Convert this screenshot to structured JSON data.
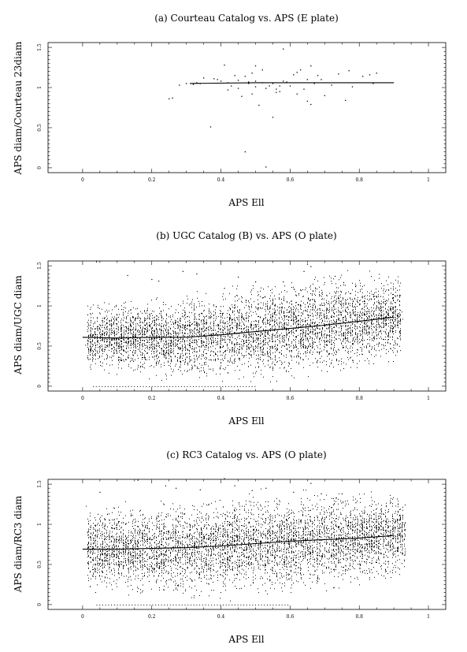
{
  "figure": {
    "background": "#ffffff",
    "ink": "#000000"
  },
  "chart_data": [
    {
      "type": "scatter",
      "title": "(a) Courteau Catalog vs. APS (E plate)",
      "xlabel": "APS Ell",
      "ylabel": "APS diam/Courteau 23diam",
      "xlim": [
        -0.1,
        1.05
      ],
      "ylim": [
        -0.06,
        1.56
      ],
      "x_ticks": [
        "0",
        "0.2",
        "0.4",
        "0.6",
        "0.8",
        "1"
      ],
      "y_ticks": [
        "0",
        "0.5",
        "1",
        "1.5"
      ],
      "grid": false,
      "series": [
        {
          "kind": "points",
          "points": [
            [
              0.25,
              0.86
            ],
            [
              0.26,
              0.87
            ],
            [
              0.28,
              1.03
            ],
            [
              0.3,
              1.05
            ],
            [
              0.32,
              1.04
            ],
            [
              0.33,
              1.06
            ],
            [
              0.34,
              1.05
            ],
            [
              0.35,
              1.12
            ],
            [
              0.37,
              0.51
            ],
            [
              0.38,
              1.11
            ],
            [
              0.39,
              1.1
            ],
            [
              0.4,
              1.08
            ],
            [
              0.41,
              1.28
            ],
            [
              0.42,
              1.06
            ],
            [
              0.42,
              0.97
            ],
            [
              0.43,
              1.02
            ],
            [
              0.44,
              1.15
            ],
            [
              0.45,
              1.09
            ],
            [
              0.45,
              0.99
            ],
            [
              0.46,
              0.89
            ],
            [
              0.47,
              0.2
            ],
            [
              0.47,
              1.14
            ],
            [
              0.48,
              1.07
            ],
            [
              0.48,
              1.05
            ],
            [
              0.49,
              0.92
            ],
            [
              0.49,
              1.18
            ],
            [
              0.5,
              1.27
            ],
            [
              0.5,
              1.01
            ],
            [
              0.5,
              1.08
            ],
            [
              0.51,
              0.78
            ],
            [
              0.52,
              1.22
            ],
            [
              0.52,
              1.06
            ],
            [
              0.53,
              0.99
            ],
            [
              0.53,
              0.01
            ],
            [
              0.54,
              1.02
            ],
            [
              0.55,
              0.63
            ],
            [
              0.55,
              1.05
            ],
            [
              0.56,
              0.94
            ],
            [
              0.56,
              0.98
            ],
            [
              0.57,
              1.02
            ],
            [
              0.57,
              0.95
            ],
            [
              0.58,
              1.48
            ],
            [
              0.58,
              1.08
            ],
            [
              0.59,
              1.07
            ],
            [
              0.6,
              1.02
            ],
            [
              0.61,
              1.16
            ],
            [
              0.62,
              0.92
            ],
            [
              0.62,
              1.19
            ],
            [
              0.63,
              1.22
            ],
            [
              0.64,
              0.98
            ],
            [
              0.65,
              0.83
            ],
            [
              0.65,
              1.1
            ],
            [
              0.66,
              0.79
            ],
            [
              0.66,
              1.27
            ],
            [
              0.67,
              1.05
            ],
            [
              0.68,
              1.15
            ],
            [
              0.69,
              1.1
            ],
            [
              0.7,
              0.9
            ],
            [
              0.72,
              1.03
            ],
            [
              0.74,
              1.17
            ],
            [
              0.76,
              0.84
            ],
            [
              0.77,
              1.21
            ],
            [
              0.78,
              1.01
            ],
            [
              0.81,
              1.14
            ],
            [
              0.83,
              1.16
            ],
            [
              0.84,
              1.05
            ],
            [
              0.85,
              1.18
            ]
          ]
        },
        {
          "kind": "line",
          "points": [
            [
              0.31,
              1.05
            ],
            [
              0.5,
              1.06
            ],
            [
              0.7,
              1.06
            ],
            [
              0.9,
              1.06
            ]
          ]
        }
      ]
    },
    {
      "type": "scatter",
      "title": "(b) UGC Catalog (B) vs. APS (O plate)",
      "xlabel": "APS Ell",
      "ylabel": "APS diam/UGC diam",
      "xlim": [
        -0.1,
        1.05
      ],
      "ylim": [
        -0.06,
        1.56
      ],
      "x_ticks": [
        "0",
        "0.2",
        "0.4",
        "0.6",
        "0.8",
        "1"
      ],
      "y_ticks": [
        "0",
        "0.5",
        "1",
        "1.5"
      ],
      "grid": false,
      "series": [
        {
          "kind": "dense_columns",
          "x_range": [
            0.01,
            0.92
          ],
          "n_points": 5200,
          "center": [
            [
              0.0,
              0.61
            ],
            [
              0.3,
              0.61
            ],
            [
              0.5,
              0.67
            ],
            [
              0.7,
              0.76
            ],
            [
              0.9,
              0.86
            ]
          ],
          "spread": [
            [
              0.0,
              0.17
            ],
            [
              0.3,
              0.2
            ],
            [
              0.5,
              0.23
            ],
            [
              0.7,
              0.24
            ],
            [
              0.9,
              0.2
            ]
          ],
          "zero_row": {
            "y": 0.0,
            "x_range": [
              0.03,
              0.5
            ]
          },
          "outliers": [
            [
              0.04,
              1.55
            ],
            [
              0.13,
              1.38
            ],
            [
              0.2,
              1.33
            ],
            [
              0.22,
              1.31
            ],
            [
              0.29,
              1.43
            ],
            [
              0.33,
              1.4
            ],
            [
              0.41,
              1.22
            ],
            [
              0.45,
              1.36
            ],
            [
              0.5,
              1.3
            ],
            [
              0.58,
              1.3
            ],
            [
              0.64,
              1.43
            ],
            [
              0.65,
              1.52
            ],
            [
              0.66,
              1.49
            ],
            [
              0.63,
              1.2
            ],
            [
              0.73,
              1.37
            ],
            [
              0.79,
              1.25
            ],
            [
              0.85,
              1.12
            ],
            [
              0.52,
              1.1
            ]
          ]
        },
        {
          "kind": "line",
          "points": [
            [
              0.0,
              0.61
            ],
            [
              0.1,
              0.6
            ],
            [
              0.2,
              0.61
            ],
            [
              0.3,
              0.61
            ],
            [
              0.4,
              0.64
            ],
            [
              0.5,
              0.68
            ],
            [
              0.6,
              0.72
            ],
            [
              0.7,
              0.76
            ],
            [
              0.8,
              0.81
            ],
            [
              0.9,
              0.86
            ]
          ]
        }
      ]
    },
    {
      "type": "scatter",
      "title": "(c) RC3 Catalog vs. APS (O plate)",
      "xlabel": "APS Ell",
      "ylabel": "APS diam/RC3 diam",
      "xlim": [
        -0.1,
        1.05
      ],
      "ylim": [
        -0.06,
        1.56
      ],
      "x_ticks": [
        "0",
        "0.2",
        "0.4",
        "0.6",
        "0.8",
        "1"
      ],
      "y_ticks": [
        "0",
        "0.5",
        "1",
        "1.5"
      ],
      "grid": false,
      "series": [
        {
          "kind": "dense_columns",
          "x_range": [
            0.01,
            0.93
          ],
          "n_points": 5200,
          "center": [
            [
              0.0,
              0.69
            ],
            [
              0.3,
              0.7
            ],
            [
              0.5,
              0.75
            ],
            [
              0.7,
              0.8
            ],
            [
              0.9,
              0.86
            ]
          ],
          "spread": [
            [
              0.0,
              0.2
            ],
            [
              0.3,
              0.23
            ],
            [
              0.5,
              0.25
            ],
            [
              0.7,
              0.24
            ],
            [
              0.9,
              0.2
            ]
          ],
          "zero_row": {
            "y": 0.0,
            "x_range": [
              0.04,
              0.6
            ]
          },
          "outliers": [
            [
              0.05,
              1.4
            ],
            [
              0.16,
              1.55
            ],
            [
              0.24,
              1.48
            ],
            [
              0.27,
              1.45
            ],
            [
              0.34,
              1.43
            ],
            [
              0.41,
              1.57
            ],
            [
              0.44,
              1.48
            ],
            [
              0.49,
              1.42
            ],
            [
              0.53,
              1.45
            ],
            [
              0.61,
              1.4
            ],
            [
              0.66,
              1.51
            ],
            [
              0.69,
              1.38
            ],
            [
              0.75,
              1.38
            ],
            [
              0.79,
              1.27
            ]
          ]
        },
        {
          "kind": "line",
          "points": [
            [
              0.0,
              0.69
            ],
            [
              0.1,
              0.69
            ],
            [
              0.2,
              0.7
            ],
            [
              0.3,
              0.71
            ],
            [
              0.4,
              0.73
            ],
            [
              0.5,
              0.76
            ],
            [
              0.6,
              0.79
            ],
            [
              0.7,
              0.81
            ],
            [
              0.8,
              0.83
            ],
            [
              0.9,
              0.86
            ]
          ]
        }
      ]
    }
  ]
}
